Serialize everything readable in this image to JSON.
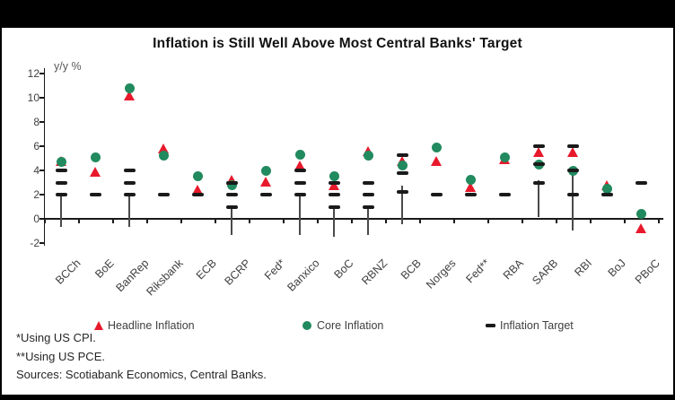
{
  "title": "Inflation is Still Well Above Most Central Banks' Target",
  "axis": {
    "unit_label": "y/y %",
    "yticks": [
      12,
      10,
      8,
      6,
      4,
      2,
      0,
      -2
    ]
  },
  "legend": [
    {
      "label": "Headline Inflation",
      "marker": "triangle",
      "color": "#e8192c"
    },
    {
      "label": "Core Inflation",
      "marker": "circle",
      "color": "#218a5e"
    },
    {
      "label": "Inflation Target",
      "marker": "dash",
      "color": "#1a1a1a"
    }
  ],
  "footnotes": [
    "*Using US CPI.",
    "**Using US PCE.",
    "Sources: Scotiabank Economics, Central Banks."
  ],
  "colors": {
    "headline": "#e8192c",
    "core": "#218a5e",
    "target": "#1a1a1a",
    "range_line": "#4a4a4a",
    "axis": "#1a1a1a"
  },
  "chart_data": {
    "type": "scatter",
    "title": "Inflation is Still Well Above Most Central Banks' Target",
    "ylabel": "y/y %",
    "ylim": [
      -2,
      12
    ],
    "grid": false,
    "legend_position": "bottom",
    "categories": [
      "BCCh",
      "BoE",
      "BanRep",
      "Riksbank",
      "ECB",
      "BCRP",
      "Fed*",
      "Banxico",
      "BoC",
      "RBNZ",
      "BCB",
      "Norges",
      "Fed**",
      "RBA",
      "SARB",
      "RBI",
      "BoJ",
      "PBoC"
    ],
    "series": [
      {
        "name": "Headline Inflation",
        "marker": "triangle",
        "values": [
          4.8,
          3.9,
          10.2,
          5.8,
          2.4,
          3.2,
          3.1,
          4.4,
          2.8,
          5.6,
          4.8,
          4.8,
          2.6,
          4.9,
          5.5,
          5.5,
          2.8,
          -0.8
        ]
      },
      {
        "name": "Core Inflation",
        "marker": "circle",
        "values": [
          4.7,
          5.1,
          10.8,
          5.2,
          3.5,
          2.8,
          4.0,
          5.3,
          3.5,
          5.2,
          4.4,
          5.9,
          3.2,
          5.1,
          4.5,
          4.0,
          2.5,
          0.4
        ]
      },
      {
        "name": "Inflation Target",
        "marker": "dash",
        "values": [
          [
            2,
            3,
            4
          ],
          [
            2
          ],
          [
            2,
            3,
            4
          ],
          [
            2
          ],
          [
            2
          ],
          [
            1,
            2,
            3
          ],
          [
            2
          ],
          [
            2,
            3,
            4
          ],
          [
            1,
            2,
            3
          ],
          [
            1,
            2,
            3
          ],
          [
            2.25,
            3.75,
            5.25
          ],
          [
            2
          ],
          [
            2
          ],
          [
            2
          ],
          [
            3,
            4.5,
            6
          ],
          [
            2,
            4,
            6
          ],
          [
            2
          ],
          [
            3
          ]
        ]
      }
    ],
    "range_lines": [
      [
        2,
        -0.65
      ],
      null,
      [
        2,
        -0.65
      ],
      null,
      null,
      [
        1,
        -1.35
      ],
      null,
      [
        2,
        -1.3
      ],
      [
        1,
        -1.5
      ],
      [
        1,
        -1.3
      ],
      [
        2.75,
        -0.45
      ],
      null,
      null,
      null,
      [
        3.15,
        0.15
      ],
      [
        3.9,
        -1.0
      ],
      null,
      null
    ]
  }
}
